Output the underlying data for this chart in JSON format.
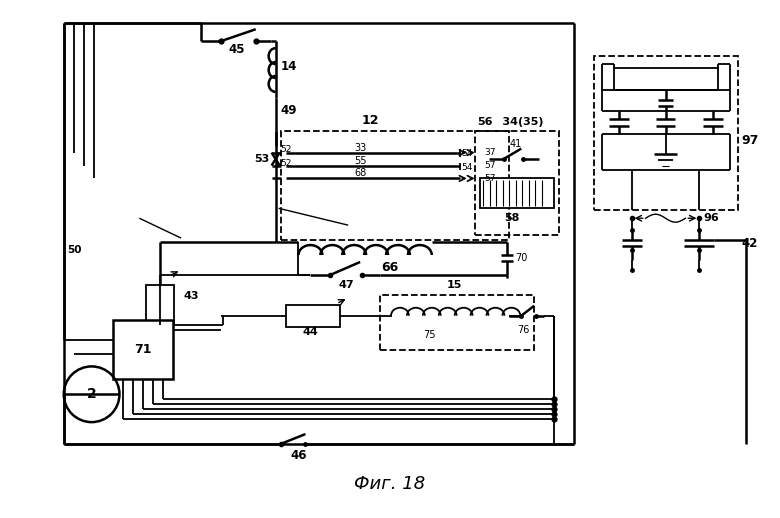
{
  "bg_color": "#ffffff",
  "line_color": "#000000",
  "title": "Фиг. 18",
  "title_fontsize": 13,
  "fig_width": 7.8,
  "fig_height": 5.18,
  "dpi": 100
}
